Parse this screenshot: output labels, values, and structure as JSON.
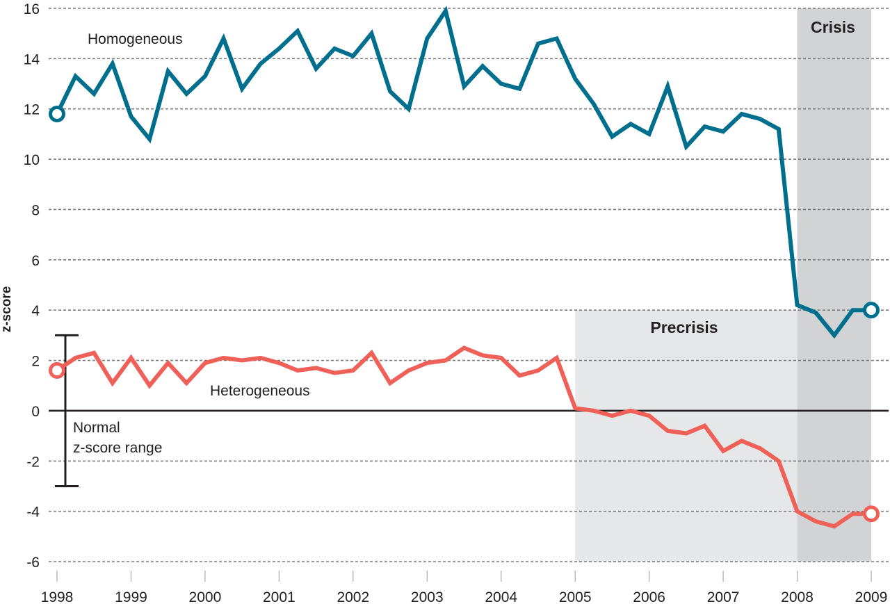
{
  "chart_data": {
    "type": "line",
    "title": "",
    "xlabel": "",
    "ylabel": "z-score",
    "xlim": [
      1998,
      2009
    ],
    "ylim": [
      -6,
      16
    ],
    "grid": true,
    "x_ticks": [
      1998,
      1999,
      2000,
      2001,
      2002,
      2003,
      2004,
      2005,
      2006,
      2007,
      2008,
      2009
    ],
    "x_tick_labels": [
      "1998",
      "1999",
      "2000",
      "2001",
      "2002",
      "2003",
      "2004",
      "2005",
      "2006",
      "2007",
      "2008",
      "2009"
    ],
    "y_ticks": [
      16,
      14,
      12,
      10,
      8,
      6,
      4,
      2,
      0,
      -2,
      -4,
      -6
    ],
    "y_tick_labels": [
      "16",
      "14",
      "12",
      "10",
      "8",
      "6",
      "4",
      "2",
      "0",
      "-2",
      "-4",
      "-6"
    ],
    "x_step": 0.25,
    "series": [
      {
        "name": "Homogeneous",
        "color": "#006f8e",
        "values": [
          11.8,
          13.3,
          12.6,
          13.8,
          11.7,
          10.8,
          13.5,
          12.6,
          13.3,
          14.8,
          12.8,
          13.8,
          14.4,
          15.1,
          13.6,
          14.4,
          14.1,
          15.0,
          12.7,
          12.0,
          14.8,
          15.9,
          12.9,
          13.7,
          13.0,
          12.8,
          14.6,
          14.8,
          13.2,
          12.2,
          10.9,
          11.4,
          11.0,
          12.9,
          10.5,
          11.3,
          11.1,
          11.8,
          11.6,
          11.2,
          4.2,
          3.9,
          3.0,
          4.0,
          4.0
        ]
      },
      {
        "name": "Heterogeneous",
        "color": "#ef6158",
        "values": [
          1.6,
          2.1,
          2.3,
          1.1,
          2.1,
          1.0,
          1.9,
          1.1,
          1.9,
          2.1,
          2.0,
          2.1,
          1.9,
          1.6,
          1.7,
          1.5,
          1.6,
          2.3,
          1.1,
          1.6,
          1.9,
          2.0,
          2.5,
          2.2,
          2.1,
          1.4,
          1.6,
          2.1,
          0.1,
          0.0,
          -0.2,
          0.0,
          -0.2,
          -0.8,
          -0.9,
          -0.6,
          -1.6,
          -1.2,
          -1.5,
          -2.0,
          -4.0,
          -4.4,
          -4.6,
          -4.1,
          -4.1
        ]
      }
    ],
    "markers": [
      {
        "series": "Homogeneous",
        "x": 1998,
        "y": 11.8,
        "style": "open-circle"
      },
      {
        "series": "Homogeneous",
        "x": 2009,
        "y": 4.0,
        "style": "open-circle"
      },
      {
        "series": "Heterogeneous",
        "x": 1998,
        "y": 1.6,
        "style": "open-circle"
      },
      {
        "series": "Heterogeneous",
        "x": 2009,
        "y": -4.1,
        "style": "open-circle"
      }
    ],
    "regions": [
      {
        "name": "Precrisis",
        "x_start": 2005,
        "x_end": 2008,
        "y_top": 4,
        "y_bottom": -6,
        "color": "#e6e7e8"
      },
      {
        "name": "Crisis",
        "x_start": 2008,
        "x_end": 2009,
        "y_top": 16,
        "y_bottom": -6,
        "color": "#d1d3d4"
      }
    ],
    "reference_range": {
      "label_line1": "Normal",
      "label_line2": "z-score range",
      "low": -3,
      "high": 3
    },
    "zero_line": true,
    "annotations": [
      {
        "text": "Homogeneous",
        "near": "top-left"
      },
      {
        "text": "Heterogeneous",
        "near": "left-center"
      },
      {
        "text": "Precrisis",
        "near": "precrisis-region-top"
      },
      {
        "text": "Crisis",
        "near": "crisis-region-top"
      }
    ]
  }
}
